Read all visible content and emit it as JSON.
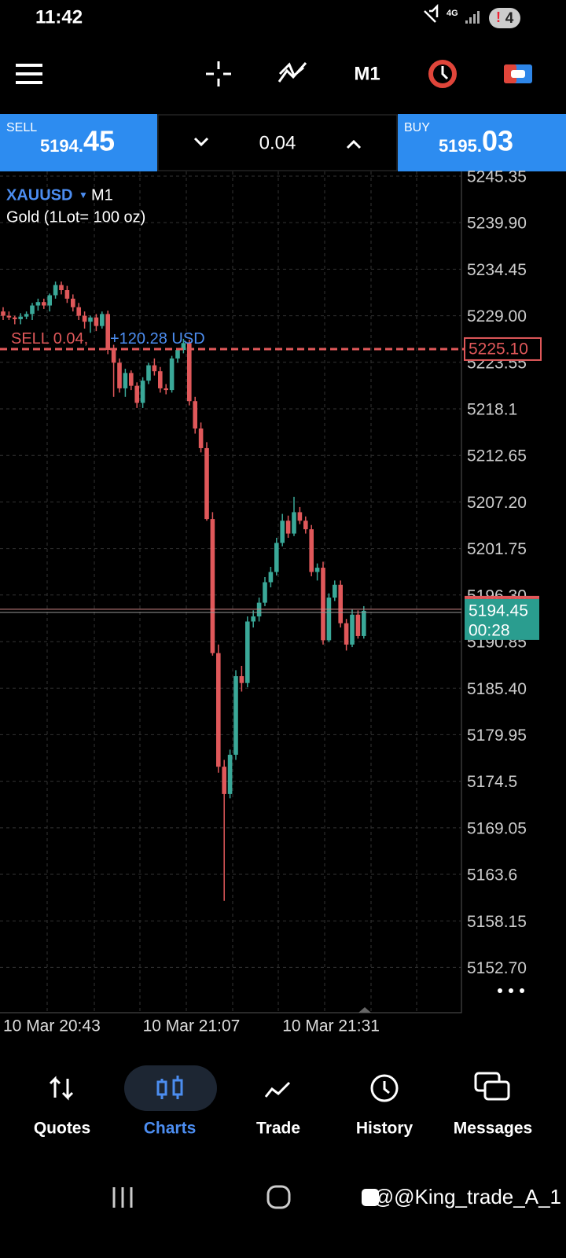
{
  "status_bar": {
    "time": "11:42",
    "network": "4G",
    "notifications": "4"
  },
  "toolbar": {
    "timeframe": "M1"
  },
  "trade_panel": {
    "sell_label": "SELL",
    "sell_price_main": "5194.",
    "sell_price_big": "45",
    "volume": "0.04",
    "buy_label": "BUY",
    "buy_price_main": "5195.",
    "buy_price_big": "03"
  },
  "chart_data": {
    "type": "candlestick",
    "symbol": "XAUUSD",
    "timeframe": "M1",
    "description": "Gold (1Lot= 100 oz)",
    "categories": [
      "10 Mar 20:43",
      null,
      null,
      null,
      null,
      null,
      null,
      null,
      null,
      null,
      null,
      null,
      null,
      null,
      null,
      null,
      null,
      null,
      null,
      null,
      null,
      null,
      null,
      null,
      "10 Mar 21:07",
      null,
      null,
      null,
      null,
      null,
      null,
      null,
      null,
      null,
      null,
      null,
      null,
      null,
      null,
      null,
      null,
      null,
      null,
      null,
      null,
      null,
      null,
      null,
      "10 Mar 21:31",
      null,
      null,
      null,
      null,
      null,
      null,
      null,
      null,
      null,
      null,
      null,
      null,
      null,
      null
    ],
    "open": [
      5229.5,
      5229,
      5228.8,
      5228.6,
      5228.9,
      5229.2,
      5230.2,
      5230.6,
      5230.2,
      5231.4,
      5232.6,
      5232,
      5231,
      5230,
      5229,
      5228.3,
      5228.8,
      5227.8,
      5229.2,
      5225,
      5223.5,
      5220.5,
      5222.3,
      5220.8,
      5218.8,
      5221.4,
      5223.2,
      5222.5,
      5220.5,
      5220.3,
      5224,
      5225,
      5225.8,
      5219,
      5215.8,
      5213.5,
      5205.2,
      5189.5,
      5176.2,
      5173,
      5177.6,
      5186.8,
      5186,
      5193.2,
      5193.8,
      5195.4,
      5197.8,
      5199,
      5202.4,
      5205,
      5203.5,
      5206,
      5205,
      5204,
      5199,
      5199.5,
      5191,
      5196,
      5197.5,
      5193,
      5190.5,
      5194,
      5191.5
    ],
    "high": [
      5230,
      5229.5,
      5229,
      5229.3,
      5229.5,
      5230.5,
      5231,
      5231,
      5231.6,
      5233,
      5233,
      5232.5,
      5231.5,
      5230.5,
      5229.5,
      5229,
      5229.2,
      5229.5,
      5229.6,
      5225.6,
      5224,
      5222.8,
      5222.6,
      5221.2,
      5221.8,
      5223.5,
      5224,
      5223,
      5221,
      5224.3,
      5225.2,
      5226.3,
      5226.2,
      5219.5,
      5216.5,
      5214.2,
      5206,
      5190.5,
      5177,
      5178.2,
      5187.5,
      5188,
      5193.8,
      5194.5,
      5196,
      5198.4,
      5199.6,
      5203,
      5205.8,
      5205.6,
      5207.8,
      5206.6,
      5205.5,
      5204.5,
      5200,
      5200.2,
      5196.5,
      5198,
      5198,
      5193.5,
      5194.6,
      5194.5,
      5195
    ],
    "low": [
      5228.5,
      5228.5,
      5228,
      5228,
      5228.6,
      5228.5,
      5229.6,
      5229.8,
      5229.5,
      5231,
      5231.5,
      5230.5,
      5229.5,
      5228.5,
      5227.5,
      5227,
      5227.2,
      5227.5,
      5224.5,
      5219.5,
      5220,
      5219.5,
      5220.3,
      5218.2,
      5218.2,
      5221,
      5222,
      5220,
      5219.8,
      5220,
      5223.5,
      5224.6,
      5218.5,
      5215.2,
      5213,
      5205,
      5189.2,
      5175.5,
      5160.5,
      5172.5,
      5177,
      5185,
      5185.5,
      5192.5,
      5193.2,
      5195,
      5197.2,
      5198.6,
      5202,
      5203,
      5203.2,
      5204.6,
      5203.5,
      5198.5,
      5198,
      5190.5,
      5190.8,
      5195.6,
      5192.5,
      5189.8,
      5190.2,
      5191.2,
      5191.2
    ],
    "close": [
      5229,
      5228.8,
      5228.6,
      5228.9,
      5229.2,
      5230.2,
      5230.6,
      5230.2,
      5231.4,
      5232.6,
      5232,
      5231,
      5230,
      5229,
      5228.3,
      5228.8,
      5227.8,
      5229.2,
      5225,
      5223.5,
      5220.5,
      5222.3,
      5220.8,
      5218.8,
      5221.4,
      5223.2,
      5222.5,
      5220.5,
      5220.3,
      5224,
      5225,
      5225.8,
      5219,
      5215.8,
      5213.5,
      5205.2,
      5189.5,
      5176.2,
      5173,
      5177.6,
      5186.8,
      5186,
      5193.2,
      5193.8,
      5195.4,
      5197.8,
      5199,
      5202.4,
      5205,
      5203.5,
      5206,
      5205,
      5204,
      5199,
      5199.5,
      5191,
      5196,
      5197.5,
      5193,
      5190.5,
      5194,
      5191.5,
      5194.45
    ],
    "up_color": "#3aa898",
    "down_color": "#e0585a",
    "grid": true,
    "ylim": [
      5147.4,
      5245.9
    ],
    "yticks": [
      5245.35,
      {
        "value": 5239.9,
        "label": "5239.90"
      },
      5234.45,
      {
        "value": 5229,
        "label": "5229.00"
      },
      5223.55,
      5218.1,
      5212.65,
      {
        "value": 5207.2,
        "label": "5207.20"
      },
      5201.75,
      {
        "value": 5196.3,
        "label": "5196.30"
      },
      5190.85,
      {
        "value": 5185.4,
        "label": "5185.40"
      },
      5179.95,
      5174.5,
      5169.05,
      5163.6,
      5158.15,
      {
        "value": 5152.7,
        "label": "5152.70"
      }
    ],
    "position": {
      "label": "SELL 0.04,",
      "profit": "+120.28 USD",
      "price": {
        "value": 5225.1,
        "label": "5225.10"
      }
    },
    "current_price": {
      "value": 5194.45,
      "timer": "00:28"
    }
  },
  "nav": {
    "items": [
      "Quotes",
      "Charts",
      "Trade",
      "History",
      "Messages"
    ]
  },
  "watermark": "@@King_trade_A_1"
}
